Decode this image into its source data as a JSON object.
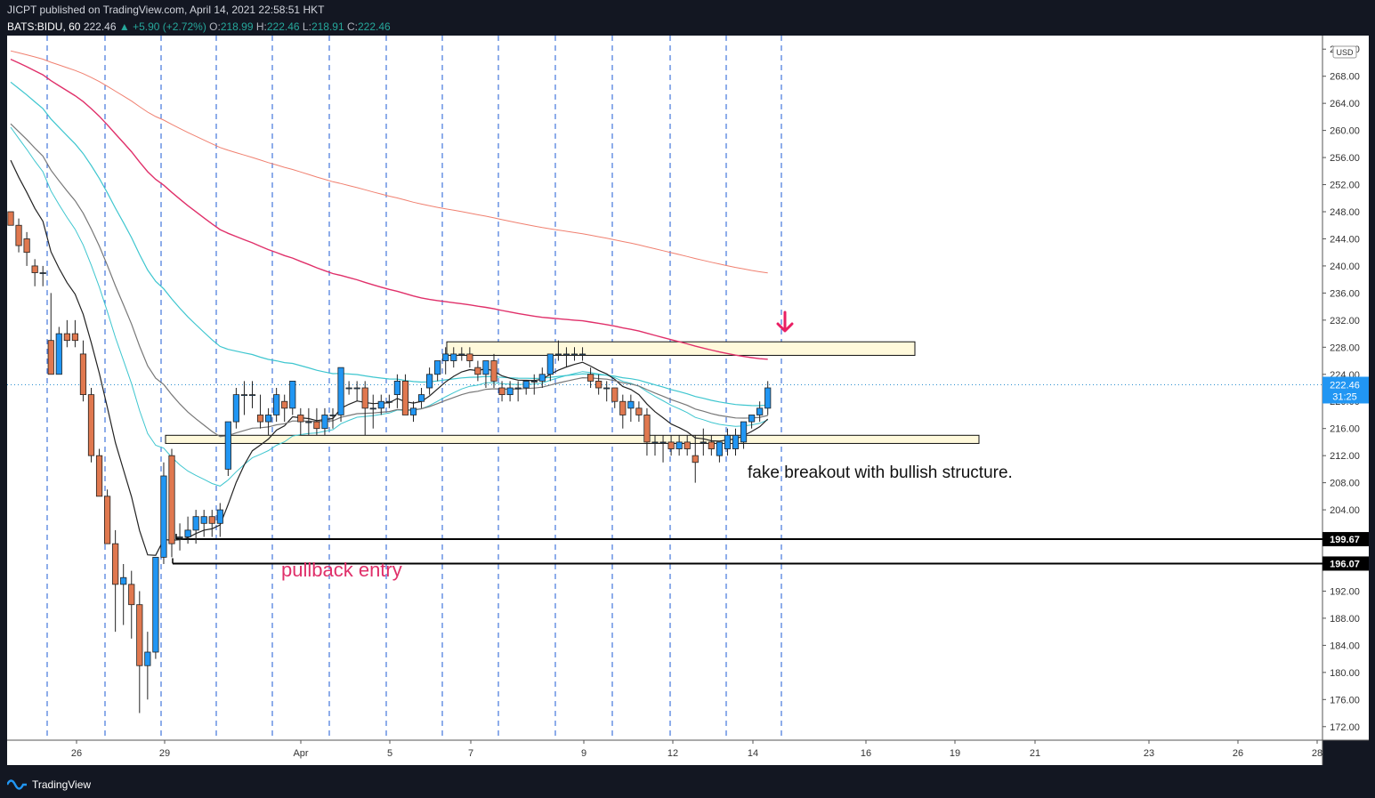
{
  "header": {
    "published": "JICPT published on TradingView.com, April 14, 2021 22:58:51 HKT",
    "symbol": "BATS:BIDU, 60",
    "last": "222.46",
    "change": "▲ +5.90 (+2.72%)",
    "o_label": "O:",
    "o_val": "218.99",
    "h_label": "H:",
    "h_val": "222.46",
    "l_label": "L:",
    "l_val": "218.91",
    "c_label": "C:",
    "c_val": "222.46"
  },
  "footer": {
    "brand": "TradingView"
  },
  "colors": {
    "bg": "#131722",
    "panel": "#ffffff",
    "up": "#2196f3",
    "down": "#e0784f",
    "grid_v": "#1e5bd6",
    "zone_fill": "#fff9db",
    "zone_stroke": "#111111",
    "ema_teal": "#3ec6cf",
    "ema_red": "#e0306a",
    "ema_salmon": "#f08070",
    "ema_dark": "#222222",
    "ema_gray": "#777777",
    "arrow": "#e91e63"
  },
  "chart_data": {
    "type": "candlestick",
    "title": "BATS:BIDU, 60",
    "currency": "USD",
    "y_ticks": [
      "172.00",
      "176.00",
      "180.00",
      "184.00",
      "188.00",
      "192.00",
      "196.00",
      "200.00",
      "204.00",
      "208.00",
      "212.00",
      "216.00",
      "220.00",
      "224.00",
      "228.00",
      "232.00",
      "236.00",
      "240.00",
      "244.00",
      "248.00",
      "252.00",
      "256.00",
      "260.00",
      "264.00",
      "268.00",
      "272.00"
    ],
    "ylim": [
      170,
      274
    ],
    "x_ticks": [
      "26",
      "29",
      "Apr",
      "5",
      "7",
      "9",
      "12",
      "14",
      "16",
      "19",
      "21",
      "23",
      "26",
      "28"
    ],
    "price_labels": {
      "current": "222.46",
      "countdown": "31:25",
      "level_1": "199.67",
      "level_2": "196.07"
    },
    "levels": [
      199.67,
      196.07
    ],
    "zones": [
      {
        "name": "resistance-zone",
        "top": 228.8,
        "bottom": 226.8
      },
      {
        "name": "support-zone",
        "top": 215.0,
        "bottom": 213.8
      }
    ],
    "annotations": {
      "text_1": "fake breakout with bullish structure.",
      "text_2": "pullback entry"
    },
    "candles": [
      [
        248,
        248,
        246,
        246
      ],
      [
        246,
        247,
        242,
        243
      ],
      [
        244,
        245,
        240,
        242
      ],
      [
        240,
        241,
        237,
        239
      ],
      [
        239,
        240,
        237,
        239
      ],
      [
        229,
        236,
        225,
        224
      ],
      [
        224,
        231,
        224,
        230
      ],
      [
        230,
        232,
        228,
        229
      ],
      [
        230,
        232,
        228,
        229
      ],
      [
        227,
        229,
        220,
        221
      ],
      [
        221,
        222,
        211,
        212
      ],
      [
        212,
        213,
        206,
        206
      ],
      [
        206,
        207,
        200,
        199
      ],
      [
        199,
        201,
        186,
        193
      ],
      [
        193,
        196,
        187,
        194
      ],
      [
        193,
        195,
        185,
        190
      ],
      [
        190,
        192,
        174,
        181
      ],
      [
        181,
        186,
        176,
        183
      ],
      [
        183,
        197,
        182,
        197
      ],
      [
        197,
        211,
        196,
        209
      ],
      [
        212,
        213,
        197,
        199
      ],
      [
        200,
        202,
        198,
        200
      ],
      [
        200,
        203,
        199,
        201
      ],
      [
        201,
        204,
        199,
        203
      ],
      [
        202,
        204,
        200,
        203
      ],
      [
        203,
        204,
        200,
        202
      ],
      [
        202,
        205,
        200,
        204
      ],
      [
        210,
        216,
        209,
        217
      ],
      [
        217,
        222,
        216,
        221
      ],
      [
        221,
        223,
        218,
        221
      ],
      [
        221,
        223,
        219,
        221
      ],
      [
        218,
        221,
        216,
        217
      ],
      [
        217,
        219,
        215,
        218
      ],
      [
        218,
        222,
        217,
        221
      ],
      [
        220,
        221,
        217,
        219
      ],
      [
        219,
        223,
        218,
        223
      ],
      [
        218,
        219,
        215,
        217
      ],
      [
        217,
        219,
        215,
        217
      ],
      [
        217,
        219,
        215,
        216
      ],
      [
        216,
        219,
        215,
        218
      ],
      [
        218,
        219,
        216,
        218
      ],
      [
        218,
        224,
        217,
        225
      ],
      [
        222,
        223,
        221,
        222
      ],
      [
        222,
        223,
        220,
        222
      ],
      [
        222,
        223,
        215,
        219
      ],
      [
        219,
        221,
        216,
        219
      ],
      [
        219,
        221,
        218,
        220
      ],
      [
        220,
        221,
        219,
        220
      ],
      [
        221,
        224,
        219,
        223
      ],
      [
        223,
        224,
        219,
        218
      ],
      [
        218,
        220,
        217,
        219
      ],
      [
        220,
        222,
        219,
        221
      ],
      [
        222,
        225,
        221,
        224
      ],
      [
        224,
        226,
        223,
        226
      ],
      [
        226,
        228,
        224,
        227
      ],
      [
        226,
        228,
        225,
        227
      ],
      [
        227,
        228,
        226,
        227
      ],
      [
        227,
        228,
        225,
        226
      ],
      [
        225,
        226,
        223,
        224
      ],
      [
        224,
        226,
        222,
        226
      ],
      [
        226,
        227,
        222,
        223
      ],
      [
        222,
        223,
        220,
        221
      ],
      [
        221,
        223,
        220,
        222
      ],
      [
        222,
        223,
        220,
        222
      ],
      [
        222,
        223,
        221,
        223
      ],
      [
        223,
        224,
        221,
        223
      ],
      [
        223,
        225,
        222,
        224
      ],
      [
        224,
        227,
        223,
        227
      ],
      [
        227,
        229,
        226,
        227
      ],
      [
        227,
        228,
        225,
        227
      ],
      [
        227,
        228,
        226,
        227
      ],
      [
        227,
        228,
        226,
        227
      ],
      [
        224,
        225,
        222,
        223
      ],
      [
        223,
        224,
        221,
        222
      ],
      [
        222,
        223,
        220,
        222
      ],
      [
        222,
        222,
        219,
        220
      ],
      [
        220,
        221,
        216,
        218
      ],
      [
        219,
        221,
        217,
        220
      ],
      [
        219,
        220,
        217,
        218
      ],
      [
        218,
        219,
        212,
        214
      ],
      [
        214,
        215,
        212,
        214
      ],
      [
        214,
        215,
        211,
        214
      ],
      [
        214,
        215,
        212,
        213
      ],
      [
        213,
        215,
        212,
        214
      ],
      [
        214,
        215,
        212,
        213
      ],
      [
        212,
        215,
        208,
        211
      ],
      [
        214,
        216,
        212,
        214
      ],
      [
        214,
        215,
        212,
        213
      ],
      [
        212,
        214,
        211,
        214
      ],
      [
        213,
        216,
        212,
        215
      ],
      [
        213,
        216,
        212,
        215
      ],
      [
        214,
        217,
        213,
        217
      ],
      [
        217,
        218,
        216,
        218
      ],
      [
        218,
        220,
        217,
        219
      ],
      [
        219,
        223,
        218,
        222
      ]
    ]
  }
}
